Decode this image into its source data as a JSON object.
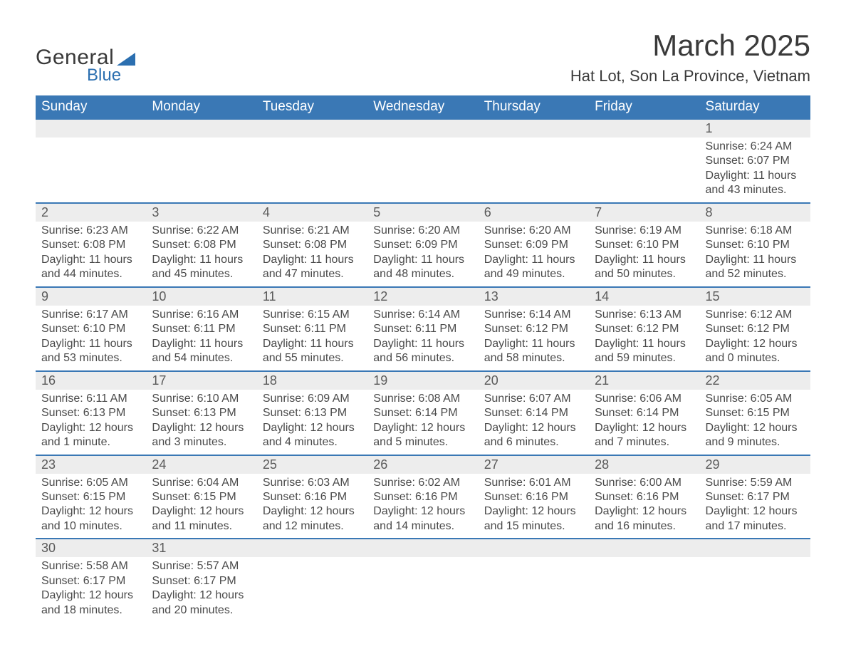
{
  "logo": {
    "text1": "General",
    "text2": "Blue"
  },
  "title": "March 2025",
  "subtitle": "Hat Lot, Son La Province, Vietnam",
  "colors": {
    "header_bg": "#3a78b5",
    "header_text": "#ffffff",
    "daynum_bg": "#ededed",
    "row_border": "#3a78b5",
    "body_text": "#4a4a4a",
    "logo_accent": "#2b6fb0"
  },
  "day_headers": [
    "Sunday",
    "Monday",
    "Tuesday",
    "Wednesday",
    "Thursday",
    "Friday",
    "Saturday"
  ],
  "weeks": [
    [
      null,
      null,
      null,
      null,
      null,
      null,
      {
        "n": "1",
        "sr": "6:24 AM",
        "ss": "6:07 PM",
        "dl": "11 hours and 43 minutes."
      }
    ],
    [
      {
        "n": "2",
        "sr": "6:23 AM",
        "ss": "6:08 PM",
        "dl": "11 hours and 44 minutes."
      },
      {
        "n": "3",
        "sr": "6:22 AM",
        "ss": "6:08 PM",
        "dl": "11 hours and 45 minutes."
      },
      {
        "n": "4",
        "sr": "6:21 AM",
        "ss": "6:08 PM",
        "dl": "11 hours and 47 minutes."
      },
      {
        "n": "5",
        "sr": "6:20 AM",
        "ss": "6:09 PM",
        "dl": "11 hours and 48 minutes."
      },
      {
        "n": "6",
        "sr": "6:20 AM",
        "ss": "6:09 PM",
        "dl": "11 hours and 49 minutes."
      },
      {
        "n": "7",
        "sr": "6:19 AM",
        "ss": "6:10 PM",
        "dl": "11 hours and 50 minutes."
      },
      {
        "n": "8",
        "sr": "6:18 AM",
        "ss": "6:10 PM",
        "dl": "11 hours and 52 minutes."
      }
    ],
    [
      {
        "n": "9",
        "sr": "6:17 AM",
        "ss": "6:10 PM",
        "dl": "11 hours and 53 minutes."
      },
      {
        "n": "10",
        "sr": "6:16 AM",
        "ss": "6:11 PM",
        "dl": "11 hours and 54 minutes."
      },
      {
        "n": "11",
        "sr": "6:15 AM",
        "ss": "6:11 PM",
        "dl": "11 hours and 55 minutes."
      },
      {
        "n": "12",
        "sr": "6:14 AM",
        "ss": "6:11 PM",
        "dl": "11 hours and 56 minutes."
      },
      {
        "n": "13",
        "sr": "6:14 AM",
        "ss": "6:12 PM",
        "dl": "11 hours and 58 minutes."
      },
      {
        "n": "14",
        "sr": "6:13 AM",
        "ss": "6:12 PM",
        "dl": "11 hours and 59 minutes."
      },
      {
        "n": "15",
        "sr": "6:12 AM",
        "ss": "6:12 PM",
        "dl": "12 hours and 0 minutes."
      }
    ],
    [
      {
        "n": "16",
        "sr": "6:11 AM",
        "ss": "6:13 PM",
        "dl": "12 hours and 1 minute."
      },
      {
        "n": "17",
        "sr": "6:10 AM",
        "ss": "6:13 PM",
        "dl": "12 hours and 3 minutes."
      },
      {
        "n": "18",
        "sr": "6:09 AM",
        "ss": "6:13 PM",
        "dl": "12 hours and 4 minutes."
      },
      {
        "n": "19",
        "sr": "6:08 AM",
        "ss": "6:14 PM",
        "dl": "12 hours and 5 minutes."
      },
      {
        "n": "20",
        "sr": "6:07 AM",
        "ss": "6:14 PM",
        "dl": "12 hours and 6 minutes."
      },
      {
        "n": "21",
        "sr": "6:06 AM",
        "ss": "6:14 PM",
        "dl": "12 hours and 7 minutes."
      },
      {
        "n": "22",
        "sr": "6:05 AM",
        "ss": "6:15 PM",
        "dl": "12 hours and 9 minutes."
      }
    ],
    [
      {
        "n": "23",
        "sr": "6:05 AM",
        "ss": "6:15 PM",
        "dl": "12 hours and 10 minutes."
      },
      {
        "n": "24",
        "sr": "6:04 AM",
        "ss": "6:15 PM",
        "dl": "12 hours and 11 minutes."
      },
      {
        "n": "25",
        "sr": "6:03 AM",
        "ss": "6:16 PM",
        "dl": "12 hours and 12 minutes."
      },
      {
        "n": "26",
        "sr": "6:02 AM",
        "ss": "6:16 PM",
        "dl": "12 hours and 14 minutes."
      },
      {
        "n": "27",
        "sr": "6:01 AM",
        "ss": "6:16 PM",
        "dl": "12 hours and 15 minutes."
      },
      {
        "n": "28",
        "sr": "6:00 AM",
        "ss": "6:16 PM",
        "dl": "12 hours and 16 minutes."
      },
      {
        "n": "29",
        "sr": "5:59 AM",
        "ss": "6:17 PM",
        "dl": "12 hours and 17 minutes."
      }
    ],
    [
      {
        "n": "30",
        "sr": "5:58 AM",
        "ss": "6:17 PM",
        "dl": "12 hours and 18 minutes."
      },
      {
        "n": "31",
        "sr": "5:57 AM",
        "ss": "6:17 PM",
        "dl": "12 hours and 20 minutes."
      },
      null,
      null,
      null,
      null,
      null
    ]
  ],
  "labels": {
    "sunrise": "Sunrise: ",
    "sunset": "Sunset: ",
    "daylight": "Daylight: "
  }
}
